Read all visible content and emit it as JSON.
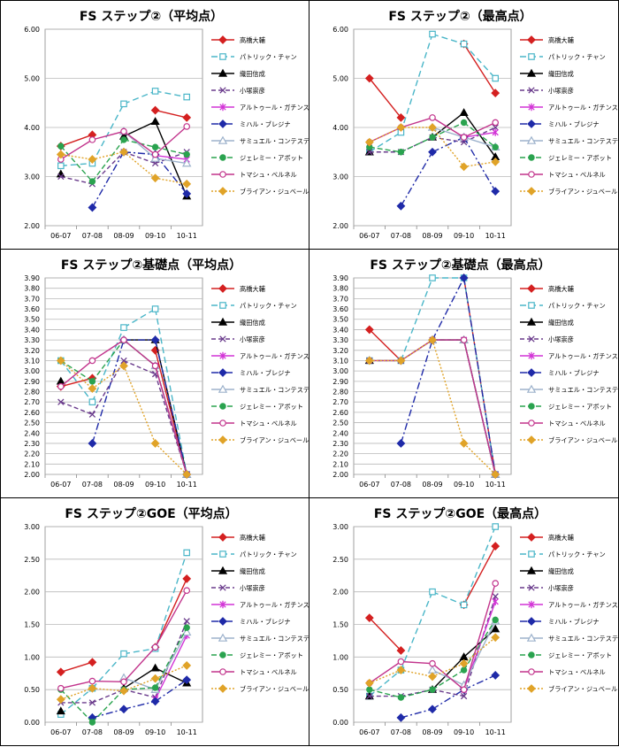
{
  "legend_items": [
    {
      "name": "高橋大輔",
      "color": "#d42020",
      "dash": "",
      "marker": "diamond"
    },
    {
      "name": "パトリック・チャン",
      "color": "#4ab6c8",
      "dash": "7,4",
      "marker": "square-open"
    },
    {
      "name": "織田信成",
      "color": "#000000",
      "dash": "",
      "marker": "triangle"
    },
    {
      "name": "小塚崇彦",
      "color": "#6a3b8c",
      "dash": "5,3",
      "marker": "x"
    },
    {
      "name": "アルトゥール・ガチンスキー",
      "color": "#d233d6",
      "dash": "",
      "marker": "star"
    },
    {
      "name": "ミハル・ブレジナ",
      "color": "#1f2aa8",
      "dash": "8,3,2,3",
      "marker": "diamond"
    },
    {
      "name": "サミュエル・コンテスティ",
      "color": "#9db2cc",
      "dash": "",
      "marker": "triangle-open"
    },
    {
      "name": "ジェレミー・アボット",
      "color": "#2aa34f",
      "dash": "6,3",
      "marker": "circle"
    },
    {
      "name": "トマシュ・ベルネル",
      "color": "#c2348c",
      "dash": "",
      "marker": "circle-open"
    },
    {
      "name": "ブライアン・ジュベール",
      "color": "#e0a328",
      "dash": "2,2",
      "marker": "diamond"
    }
  ],
  "chart_data": [
    {
      "type": "line",
      "title": "FS ステップ②（平均点）",
      "categories": [
        "06-07",
        "07-08",
        "08-09",
        "09-10",
        "10-11"
      ],
      "ylim": [
        2.0,
        6.0
      ],
      "yticks": [
        "2.00",
        "3.00",
        "4.00",
        "5.00",
        "6.00"
      ],
      "series": [
        {
          "name": "高橋大輔",
          "values": [
            3.62,
            3.85,
            null,
            4.35,
            4.2
          ]
        },
        {
          "name": "パトリック・チャン",
          "values": [
            3.22,
            3.27,
            4.48,
            4.74,
            4.62
          ]
        },
        {
          "name": "織田信成",
          "values": [
            3.05,
            null,
            3.82,
            4.12,
            2.6
          ]
        },
        {
          "name": "小塚崇彦",
          "values": [
            3.0,
            2.85,
            3.5,
            3.27,
            3.5
          ]
        },
        {
          "name": "アルトゥール・ガチンスキー",
          "values": [
            null,
            null,
            null,
            3.43,
            3.35
          ]
        },
        {
          "name": "ミハル・ブレジナ",
          "values": [
            null,
            2.37,
            3.5,
            3.45,
            2.65
          ]
        },
        {
          "name": "サミュエル・コンテスティ",
          "values": [
            null,
            null,
            3.92,
            3.37,
            3.27
          ]
        },
        {
          "name": "ジェレミー・アボット",
          "values": [
            3.62,
            2.9,
            3.75,
            3.6,
            3.45
          ]
        },
        {
          "name": "トマシュ・ベルネル",
          "values": [
            3.35,
            3.75,
            3.92,
            3.45,
            4.02
          ]
        },
        {
          "name": "ブライアン・ジュベール",
          "values": [
            3.45,
            3.35,
            3.5,
            2.97,
            2.85
          ]
        }
      ]
    },
    {
      "type": "line",
      "title": "FS ステップ②（最高点）",
      "categories": [
        "06-07",
        "07-08",
        "08-09",
        "09-10",
        "10-11"
      ],
      "ylim": [
        2.0,
        6.0
      ],
      "yticks": [
        "2.00",
        "3.00",
        "4.00",
        "5.00",
        "6.00"
      ],
      "series": [
        {
          "name": "高橋大輔",
          "values": [
            5.0,
            4.2,
            null,
            5.7,
            4.7
          ]
        },
        {
          "name": "パトリック・チャン",
          "values": [
            3.5,
            3.9,
            5.9,
            5.7,
            5.0
          ]
        },
        {
          "name": "織田信成",
          "values": [
            3.5,
            null,
            3.8,
            4.3,
            3.4
          ]
        },
        {
          "name": "小塚崇彦",
          "values": [
            3.5,
            3.5,
            3.8,
            3.7,
            4.0
          ]
        },
        {
          "name": "アルトゥール・ガチンスキー",
          "values": [
            null,
            null,
            null,
            3.8,
            3.9
          ]
        },
        {
          "name": "ミハル・ブレジナ",
          "values": [
            null,
            2.4,
            3.5,
            3.8,
            2.7
          ]
        },
        {
          "name": "サミュエル・コンテスティ",
          "values": [
            null,
            null,
            4.0,
            3.8,
            3.6
          ]
        },
        {
          "name": "ジェレミー・アボット",
          "values": [
            3.6,
            3.5,
            3.8,
            4.1,
            3.6
          ]
        },
        {
          "name": "トマシュ・ベルネル",
          "values": [
            3.7,
            4.0,
            4.2,
            3.8,
            4.1
          ]
        },
        {
          "name": "ブライアン・ジュベール",
          "values": [
            3.7,
            4.0,
            4.0,
            3.2,
            3.3
          ]
        }
      ]
    },
    {
      "type": "line",
      "title": "FS ステップ②基礎点（平均点）",
      "categories": [
        "06-07",
        "07-08",
        "08-09",
        "09-10",
        "10-11"
      ],
      "ylim": [
        2.0,
        3.9
      ],
      "yticks": [
        "2.00",
        "2.10",
        "2.20",
        "2.30",
        "2.40",
        "2.50",
        "2.60",
        "2.70",
        "2.80",
        "2.90",
        "3.00",
        "3.10",
        "3.20",
        "3.30",
        "3.40",
        "3.50",
        "3.60",
        "3.70",
        "3.80",
        "3.90"
      ],
      "series": [
        {
          "name": "高橋大輔",
          "values": [
            2.85,
            2.93,
            null,
            3.2,
            2.0
          ]
        },
        {
          "name": "パトリック・チャン",
          "values": [
            3.1,
            2.7,
            3.42,
            3.6,
            2.0
          ]
        },
        {
          "name": "織田信成",
          "values": [
            2.9,
            null,
            3.3,
            3.3,
            2.0
          ]
        },
        {
          "name": "小塚崇彦",
          "values": [
            2.7,
            2.58,
            3.1,
            2.97,
            2.0
          ]
        },
        {
          "name": "アルトゥール・ガチンスキー",
          "values": [
            null,
            null,
            null,
            3.05,
            2.0
          ]
        },
        {
          "name": "ミハル・ブレジナ",
          "values": [
            null,
            2.3,
            3.3,
            3.3,
            2.0
          ]
        },
        {
          "name": "サミュエル・コンテスティ",
          "values": [
            null,
            null,
            3.3,
            3.05,
            2.0
          ]
        },
        {
          "name": "ジェレミー・アボット",
          "values": [
            3.1,
            2.9,
            3.3,
            3.05,
            2.0
          ]
        },
        {
          "name": "トマシュ・ベルネル",
          "values": [
            2.85,
            3.1,
            3.3,
            3.05,
            2.0
          ]
        },
        {
          "name": "ブライアン・ジュベール",
          "values": [
            3.1,
            2.83,
            3.05,
            2.3,
            2.0
          ]
        }
      ]
    },
    {
      "type": "line",
      "title": "FS ステップ②基礎点（最高点）",
      "categories": [
        "06-07",
        "07-08",
        "08-09",
        "09-10",
        "10-11"
      ],
      "ylim": [
        2.0,
        3.9
      ],
      "yticks": [
        "2.00",
        "2.10",
        "2.20",
        "2.30",
        "2.40",
        "2.50",
        "2.60",
        "2.70",
        "2.80",
        "2.90",
        "3.00",
        "3.10",
        "3.20",
        "3.30",
        "3.40",
        "3.50",
        "3.60",
        "3.70",
        "3.80",
        "3.90"
      ],
      "series": [
        {
          "name": "高橋大輔",
          "values": [
            3.4,
            3.1,
            null,
            3.9,
            2.0
          ]
        },
        {
          "name": "パトリック・チャン",
          "values": [
            3.1,
            3.1,
            3.9,
            3.9,
            2.0
          ]
        },
        {
          "name": "織田信成",
          "values": [
            3.1,
            null,
            3.3,
            3.3,
            2.0
          ]
        },
        {
          "name": "小塚崇彦",
          "values": [
            3.1,
            3.1,
            3.3,
            3.3,
            2.0
          ]
        },
        {
          "name": "アルトゥール・ガチンスキー",
          "values": [
            null,
            null,
            null,
            3.3,
            2.0
          ]
        },
        {
          "name": "ミハル・ブレジナ",
          "values": [
            null,
            2.3,
            3.3,
            3.9,
            2.0
          ]
        },
        {
          "name": "サミュエル・コンテスティ",
          "values": [
            null,
            null,
            3.3,
            3.3,
            2.0
          ]
        },
        {
          "name": "ジェレミー・アボット",
          "values": [
            3.1,
            3.1,
            3.3,
            3.3,
            2.0
          ]
        },
        {
          "name": "トマシュ・ベルネル",
          "values": [
            3.1,
            3.1,
            3.3,
            3.3,
            2.0
          ]
        },
        {
          "name": "ブライアン・ジュベール",
          "values": [
            3.1,
            3.1,
            3.3,
            2.3,
            2.0
          ]
        }
      ]
    },
    {
      "type": "line",
      "title": "FS ステップ②GOE（平均点）",
      "categories": [
        "06-07",
        "07-08",
        "08-09",
        "09-10",
        "10-11"
      ],
      "ylim": [
        0.0,
        3.0
      ],
      "yticks": [
        "0.00",
        "0.50",
        "1.00",
        "1.50",
        "2.00",
        "2.50",
        "3.00"
      ],
      "series": [
        {
          "name": "高橋大輔",
          "values": [
            0.77,
            0.92,
            null,
            1.15,
            2.2
          ]
        },
        {
          "name": "パトリック・チャン",
          "values": [
            0.12,
            0.52,
            1.05,
            1.13,
            2.6
          ]
        },
        {
          "name": "織田信成",
          "values": [
            0.17,
            null,
            0.52,
            0.83,
            0.6
          ]
        },
        {
          "name": "小塚崇彦",
          "values": [
            0.3,
            0.3,
            0.5,
            0.38,
            1.55
          ]
        },
        {
          "name": "アルトゥール・ガチンスキー",
          "values": [
            null,
            null,
            null,
            0.35,
            1.33
          ]
        },
        {
          "name": "ミハル・ブレジナ",
          "values": [
            null,
            0.07,
            0.2,
            0.32,
            0.65
          ]
        },
        {
          "name": "サミュエル・コンテスティ",
          "values": [
            null,
            null,
            0.68,
            0.5,
            1.38
          ]
        },
        {
          "name": "ジェレミー・アボット",
          "values": [
            0.5,
            0.0,
            0.5,
            0.53,
            1.45
          ]
        },
        {
          "name": "トマシュ・ベルネル",
          "values": [
            0.52,
            0.63,
            0.62,
            1.15,
            2.02
          ]
        },
        {
          "name": "ブライアン・ジュベール",
          "values": [
            0.35,
            0.52,
            0.48,
            0.67,
            0.87
          ]
        }
      ]
    },
    {
      "type": "line",
      "title": "FS ステップ②GOE（最高点）",
      "categories": [
        "06-07",
        "07-08",
        "08-09",
        "09-10",
        "10-11"
      ],
      "ylim": [
        0.0,
        3.0
      ],
      "yticks": [
        "0.00",
        "0.50",
        "1.00",
        "1.50",
        "2.00",
        "2.50",
        "3.00"
      ],
      "series": [
        {
          "name": "高橋大輔",
          "values": [
            1.6,
            1.1,
            null,
            1.8,
            2.7
          ]
        },
        {
          "name": "パトリック・チャン",
          "values": [
            0.4,
            0.8,
            2.0,
            1.8,
            3.0
          ]
        },
        {
          "name": "織田信成",
          "values": [
            0.4,
            null,
            0.5,
            1.0,
            1.43
          ]
        },
        {
          "name": "小塚崇彦",
          "values": [
            0.4,
            0.4,
            0.5,
            0.4,
            1.93
          ]
        },
        {
          "name": "アルトゥール・ガチンスキー",
          "values": [
            null,
            null,
            null,
            0.5,
            1.85
          ]
        },
        {
          "name": "ミハル・ブレジナ",
          "values": [
            null,
            0.07,
            0.2,
            0.5,
            0.72
          ]
        },
        {
          "name": "サミュエル・コンテスティ",
          "values": [
            null,
            null,
            0.8,
            0.57,
            1.55
          ]
        },
        {
          "name": "ジェレミー・アボット",
          "values": [
            0.5,
            0.38,
            0.5,
            0.8,
            1.57
          ]
        },
        {
          "name": "トマシュ・ベルネル",
          "values": [
            0.6,
            0.93,
            0.9,
            0.5,
            2.13
          ]
        },
        {
          "name": "ブライアン・ジュベール",
          "values": [
            0.6,
            0.8,
            0.7,
            0.9,
            1.3
          ]
        }
      ]
    }
  ]
}
